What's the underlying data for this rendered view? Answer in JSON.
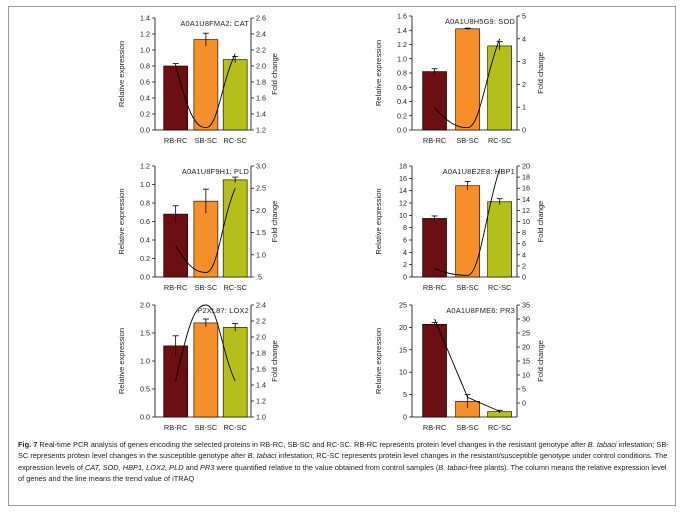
{
  "colors": {
    "rb_rc": "#6b0f12",
    "sb_sc": "#f58f2a",
    "rc_sc": "#b5bf1a",
    "line": "#000000",
    "error_bar": "#000000"
  },
  "chart_data": [
    {
      "type": "bar",
      "title": "A0A1U8FMA2: CAT",
      "categories": [
        "RB-RC",
        "SB-SC",
        "RC-SC"
      ],
      "values": [
        0.8,
        1.13,
        0.88
      ],
      "errors": [
        0.03,
        0.08,
        0.04
      ],
      "ylabel": "Relative expression",
      "ylim": [
        0,
        1.4
      ],
      "yticks": [
        "0.0",
        "0.2",
        "0.4",
        "0.6",
        "0.8",
        "1.0",
        "1.2",
        "1.4"
      ],
      "y2label": "Fold change",
      "y2lim": [
        1.2,
        2.6
      ],
      "y2ticks": [
        "1.2",
        "1.4",
        "1.6",
        "1.8",
        "2.0",
        "2.2",
        "2.4",
        "2.6"
      ],
      "trend_line": [
        2.0,
        1.23,
        2.15
      ]
    },
    {
      "type": "bar",
      "title": "A0A1U8H5G9: SOD",
      "categories": [
        "RB-RC",
        "SB-SC",
        "RC-SC"
      ],
      "values": [
        0.82,
        1.42,
        1.18
      ],
      "errors": [
        0.04,
        0.01,
        0.06
      ],
      "ylabel": "Relative expression",
      "ylim": [
        0,
        1.6
      ],
      "yticks": [
        "0.0",
        "0.2",
        "0.4",
        "0.6",
        "0.8",
        "1.0",
        "1.2",
        "1.4",
        "1.6"
      ],
      "y2label": "Fold change",
      "y2lim": [
        0,
        5
      ],
      "y2ticks": [
        "0",
        "1",
        "2",
        "3",
        "4",
        "5"
      ],
      "trend_line": [
        1.0,
        0.1,
        4.0
      ]
    },
    {
      "type": "bar",
      "title": "A0A1U8F9H1: PLD",
      "categories": [
        "RB-RC",
        "SB-SC",
        "RC-SC"
      ],
      "values": [
        0.68,
        0.82,
        1.05
      ],
      "errors": [
        0.09,
        0.13,
        0.03
      ],
      "ylabel": "Relative expression",
      "ylim": [
        0,
        1.2
      ],
      "yticks": [
        "0.0",
        "0.2",
        "0.4",
        "0.6",
        "0.8",
        "1.0",
        "1.2"
      ],
      "y2label": "Fold change",
      "y2lim": [
        0.5,
        3.0
      ],
      "y2ticks": [
        ".5",
        "1.0",
        "1.5",
        "2.0",
        "2.5",
        "3.0"
      ],
      "trend_line": [
        1.2,
        0.6,
        2.5
      ]
    },
    {
      "type": "bar",
      "title": "A0A1U8E2E8: HBP1",
      "categories": [
        "RB-RC",
        "SB-SC",
        "RC-SC"
      ],
      "values": [
        9.5,
        14.8,
        12.2
      ],
      "errors": [
        0.4,
        0.7,
        0.5
      ],
      "ylabel": "Relative expression",
      "ylim": [
        0,
        18
      ],
      "yticks": [
        "0",
        "2",
        "4",
        "6",
        "8",
        "10",
        "12",
        "14",
        "16",
        "18"
      ],
      "y2label": "Fold change",
      "y2lim": [
        0,
        20
      ],
      "y2ticks": [
        "0",
        "2",
        "4",
        "6",
        "8",
        "10",
        "12",
        "14",
        "16",
        "18",
        "20"
      ],
      "trend_line": [
        1.5,
        0.3,
        19.5
      ]
    },
    {
      "type": "bar",
      "title": "P2XL87: LOX2",
      "categories": [
        "RB-RC",
        "SB-SC",
        "RC-SC"
      ],
      "values": [
        1.27,
        1.68,
        1.6
      ],
      "errors": [
        0.18,
        0.07,
        0.07
      ],
      "ylabel": "Relative expression",
      "ylim": [
        0,
        2.0
      ],
      "yticks": [
        "0.0",
        "0.5",
        "1.0",
        "1.5",
        "2.0"
      ],
      "y2label": "Fold change",
      "y2lim": [
        1.0,
        2.4
      ],
      "y2ticks": [
        "1.0",
        "1.2",
        "1.4",
        "1.6",
        "1.8",
        "2.0",
        "2.2",
        "2.4"
      ],
      "trend_line": [
        1.45,
        2.4,
        1.45
      ]
    },
    {
      "type": "bar",
      "title": "A0A1U8FME6: PR3",
      "categories": [
        "RB-RC",
        "SB-SC",
        "RC-SC"
      ],
      "values": [
        20.7,
        3.5,
        1.2
      ],
      "errors": [
        0.4,
        1.5,
        0.3
      ],
      "ylabel": "Relative expression",
      "ylim": [
        0,
        25
      ],
      "yticks": [
        "0",
        "5",
        "10",
        "15",
        "20",
        "25"
      ],
      "y2label": "Fold change",
      "y2lim": [
        -5,
        35
      ],
      "y2ticks": [
        "0",
        "5",
        "10",
        "15",
        "20",
        "25",
        "30",
        "35"
      ],
      "trend_line": [
        30,
        2,
        -3
      ]
    }
  ],
  "caption": {
    "label": "Fig. 7",
    "text_1": " Real-time PCR analysis of genes encoding the selected proteins in RB-RC, SB-SC and RC-SC. RB-RC represents protein level changes in the resistant genotype after ",
    "italic_1": "B. tabaci",
    "text_2": " infestation; SB-SC represents protein level changes in the susceptible genotype after ",
    "italic_2": "B. tabaci",
    "text_3": " infestation; RC-SC represents protein level changes in the resistant/susceptible genotype under control conditions. The expression levels of ",
    "italic_3": "CAT, SOD, HBP1, LOX2, PLD",
    "text_4": " and ",
    "italic_4": "PR3",
    "text_5": " were quantified relative to the value obtained from control samples (",
    "italic_5": "B. tabaci",
    "text_6": "-free plants). The column means the relative expression level of genes and the line means the trend value of iTRAQ"
  }
}
